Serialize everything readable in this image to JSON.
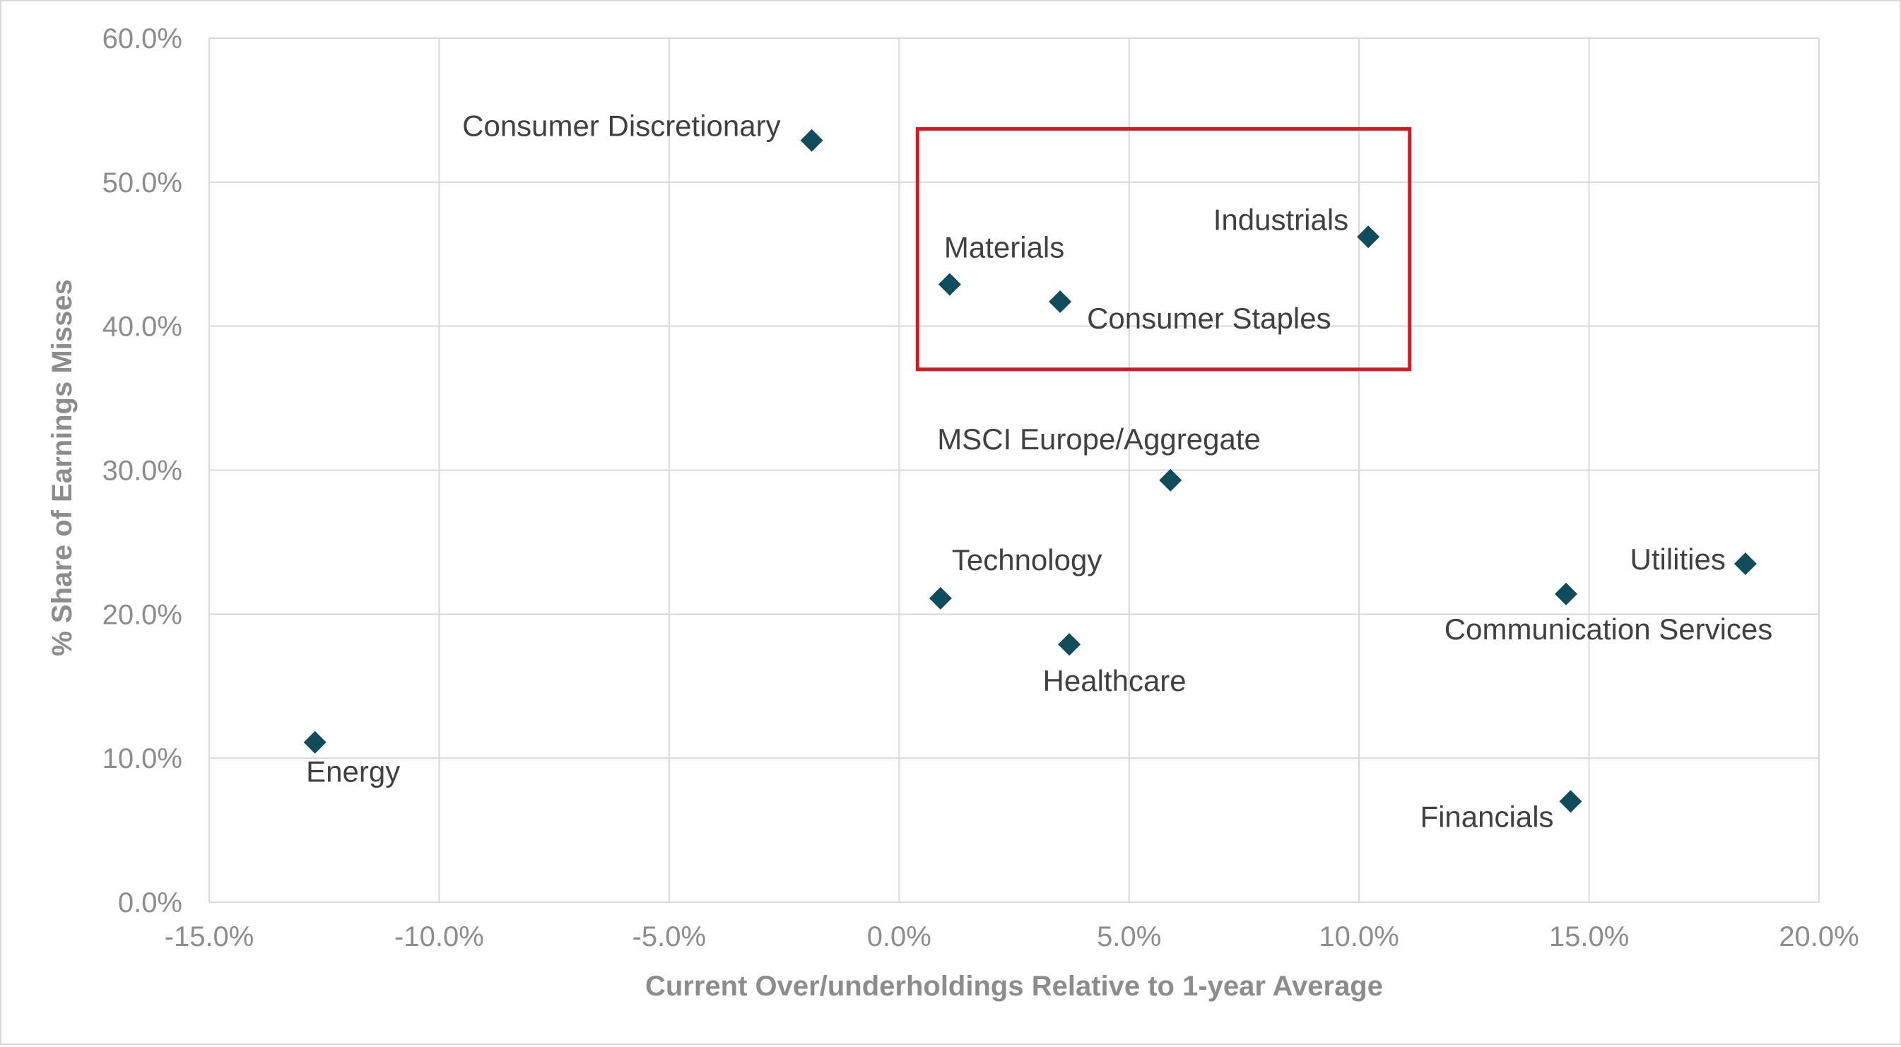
{
  "chart_data": {
    "type": "scatter",
    "title": "",
    "xlabel": "Current Over/underholdings Relative to 1-year Average",
    "ylabel": "% Share of Earnings Misses",
    "xlim": [
      -15,
      20
    ],
    "ylim": [
      0,
      60
    ],
    "x_ticks": [
      -15,
      -10,
      -5,
      0,
      5,
      10,
      15,
      20
    ],
    "y_ticks": [
      0,
      10,
      20,
      30,
      40,
      50,
      60
    ],
    "x_tick_labels": [
      "-15.0%",
      "-10.0%",
      "-5.0%",
      "0.0%",
      "5.0%",
      "10.0%",
      "15.0%",
      "20.0%"
    ],
    "y_tick_labels": [
      "0.0%",
      "10.0%",
      "20.0%",
      "30.0%",
      "40.0%",
      "50.0%",
      "60.0%"
    ],
    "grid": true,
    "legend": "none",
    "marker": "diamond",
    "marker_color": "#0f4c5c",
    "highlight_box_color": "#e0141e",
    "highlight_box": {
      "x": [
        0.4,
        11.1
      ],
      "y": [
        37,
        53.7
      ]
    },
    "points": [
      {
        "label": "Consumer Discretionary",
        "x": -1.9,
        "y": 52.9
      },
      {
        "label": "Industrials",
        "x": 10.2,
        "y": 46.2
      },
      {
        "label": "Materials",
        "x": 1.1,
        "y": 42.9
      },
      {
        "label": "Consumer Staples",
        "x": 3.5,
        "y": 41.7
      },
      {
        "label": "MSCI Europe/Aggregate",
        "x": 5.9,
        "y": 29.3
      },
      {
        "label": "Technology",
        "x": 0.9,
        "y": 21.1
      },
      {
        "label": "Healthcare",
        "x": 3.7,
        "y": 17.9
      },
      {
        "label": "Utilities",
        "x": 18.4,
        "y": 23.5
      },
      {
        "label": "Communication Services",
        "x": 14.5,
        "y": 21.4
      },
      {
        "label": "Energy",
        "x": -12.7,
        "y": 11.1
      },
      {
        "label": "Financials",
        "x": 14.6,
        "y": 7.0
      }
    ]
  }
}
